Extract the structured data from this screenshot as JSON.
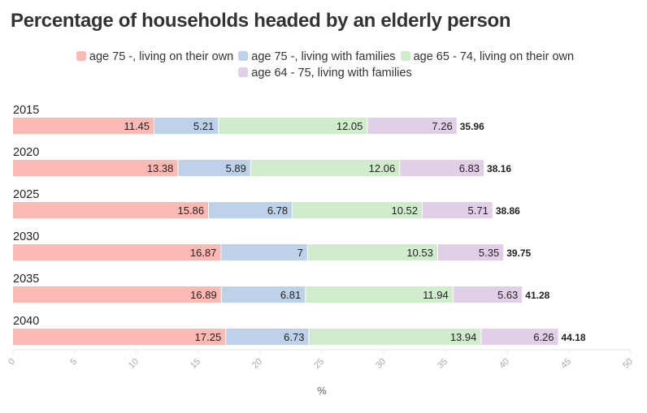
{
  "chart_data": {
    "type": "bar",
    "orientation": "horizontal",
    "stacked": true,
    "title": "Percentage of households headed by an elderly person",
    "xlabel": "%",
    "ylabel": "",
    "xlim": [
      0,
      50
    ],
    "xticks": [
      "0",
      "5",
      "10",
      "15",
      "20",
      "25",
      "30",
      "35",
      "40",
      "45",
      "50"
    ],
    "legend_position": "top-center",
    "categories": [
      "2015",
      "2020",
      "2025",
      "2030",
      "2035",
      "2040"
    ],
    "series": [
      {
        "name": "age 75 -, living on their own",
        "color": "#fbb9b4",
        "values": [
          11.45,
          13.38,
          15.86,
          16.87,
          16.89,
          17.25
        ]
      },
      {
        "name": "age 75 -, living with families",
        "color": "#bdd1e8",
        "values": [
          5.21,
          5.89,
          6.78,
          7,
          6.81,
          6.73
        ]
      },
      {
        "name": "age 65 - 74, living on their own",
        "color": "#d1ebcd",
        "values": [
          12.05,
          12.06,
          10.52,
          10.53,
          11.94,
          13.94
        ]
      },
      {
        "name": "age 64 - 75, living with families",
        "color": "#e1cfe7",
        "values": [
          7.26,
          6.83,
          5.71,
          5.35,
          5.63,
          6.26
        ]
      }
    ],
    "totals": [
      35.96,
      38.16,
      38.86,
      39.75,
      41.28,
      44.18
    ]
  }
}
